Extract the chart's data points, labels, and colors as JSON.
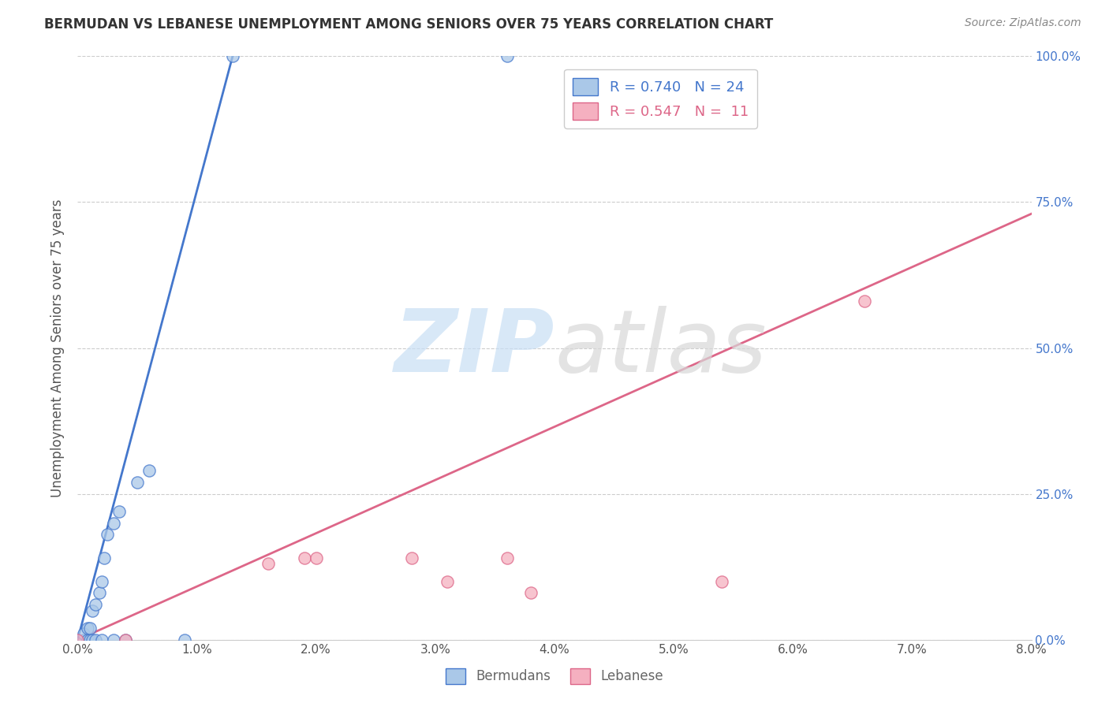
{
  "title": "BERMUDAN VS LEBANESE UNEMPLOYMENT AMONG SENIORS OVER 75 YEARS CORRELATION CHART",
  "source": "Source: ZipAtlas.com",
  "ylabel_label": "Unemployment Among Seniors over 75 years",
  "xmin": 0.0,
  "xmax": 0.08,
  "ymin": 0.0,
  "ymax": 1.0,
  "legend_entries": [
    {
      "label": "Bermudans",
      "R": "0.740",
      "N": "24"
    },
    {
      "label": "Lebanese",
      "R": "0.547",
      "N": "11"
    }
  ],
  "bermudan_x": [
    0.0005,
    0.0005,
    0.0008,
    0.0008,
    0.001,
    0.001,
    0.0012,
    0.0012,
    0.0015,
    0.0015,
    0.0018,
    0.002,
    0.002,
    0.0022,
    0.0025,
    0.003,
    0.003,
    0.0035,
    0.004,
    0.005,
    0.006,
    0.009,
    0.013,
    0.036
  ],
  "bermudan_y": [
    0.0,
    0.01,
    0.0,
    0.02,
    0.0,
    0.02,
    0.0,
    0.05,
    0.0,
    0.06,
    0.08,
    0.0,
    0.1,
    0.14,
    0.18,
    0.2,
    0.0,
    0.22,
    0.0,
    0.27,
    0.29,
    0.0,
    1.0,
    1.0
  ],
  "lebanese_x": [
    0.0,
    0.004,
    0.016,
    0.019,
    0.02,
    0.028,
    0.031,
    0.036,
    0.038,
    0.054,
    0.066
  ],
  "lebanese_y": [
    0.0,
    0.0,
    0.13,
    0.14,
    0.14,
    0.14,
    0.1,
    0.14,
    0.08,
    0.1,
    0.58
  ],
  "bermudan_line_x": [
    0.0,
    0.013
  ],
  "bermudan_line_y": [
    0.0,
    1.0
  ],
  "lebanese_line_x": [
    0.0,
    0.08
  ],
  "lebanese_line_y": [
    0.0,
    0.73
  ],
  "bermudan_color": "#4477cc",
  "lebanese_color": "#dd6688",
  "bermudan_fill": "#aac8e8",
  "lebanese_fill": "#f5b0c0",
  "grid_color": "#cccccc",
  "background": "#ffffff",
  "ytick_vals": [
    0.0,
    0.25,
    0.5,
    0.75,
    1.0
  ],
  "ytick_labels": [
    "0.0%",
    "25.0%",
    "50.0%",
    "75.0%",
    "100.0%"
  ],
  "xtick_vals": [
    0.0,
    0.01,
    0.02,
    0.03,
    0.04,
    0.05,
    0.06,
    0.07,
    0.08
  ],
  "xtick_labels": [
    "0.0%",
    "1.0%",
    "2.0%",
    "3.0%",
    "4.0%",
    "5.0%",
    "6.0%",
    "7.0%",
    "8.0%"
  ]
}
